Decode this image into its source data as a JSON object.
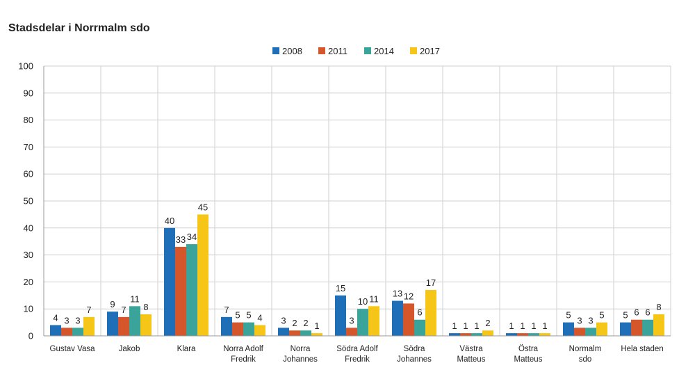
{
  "chart_data": {
    "type": "bar",
    "title": "Stadsdelar i Norrmalm sdo",
    "categories": [
      [
        "Gustav Vasa"
      ],
      [
        "Jakob"
      ],
      [
        "Klara"
      ],
      [
        "Norra Adolf",
        "Fredrik"
      ],
      [
        "Norra",
        "Johannes"
      ],
      [
        "Södra Adolf",
        "Fredrik"
      ],
      [
        "Södra",
        "Johannes"
      ],
      [
        "Västra",
        "Matteus"
      ],
      [
        "Östra",
        "Matteus"
      ],
      [
        "Normalm",
        "sdo"
      ],
      [
        "Hela staden"
      ]
    ],
    "series": [
      {
        "name": "2008",
        "color": "#1f6fb8",
        "values": [
          4,
          9,
          40,
          7,
          3,
          15,
          13,
          1,
          1,
          5,
          5
        ]
      },
      {
        "name": "2011",
        "color": "#d4562a",
        "values": [
          3,
          7,
          33,
          5,
          2,
          3,
          12,
          1,
          1,
          3,
          6
        ]
      },
      {
        "name": "2014",
        "color": "#3aa49a",
        "values": [
          3,
          11,
          34,
          5,
          2,
          10,
          6,
          1,
          1,
          3,
          6
        ]
      },
      {
        "name": "2017",
        "color": "#f5c518",
        "values": [
          7,
          8,
          45,
          4,
          1,
          11,
          17,
          2,
          1,
          5,
          8
        ]
      }
    ],
    "ylim": [
      0,
      100
    ],
    "yticks": [
      0,
      10,
      20,
      30,
      40,
      50,
      60,
      70,
      80,
      90,
      100
    ],
    "grid": true,
    "legend_position": "top-center"
  }
}
